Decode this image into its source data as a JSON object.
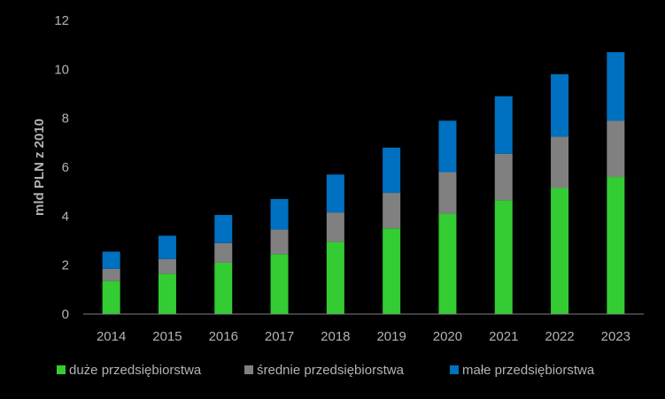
{
  "chart_data": {
    "type": "bar",
    "stacked": true,
    "title": "",
    "xlabel": "",
    "ylabel": "mld PLN z 2010",
    "ylim": [
      0,
      12
    ],
    "yticks": [
      "0",
      "2",
      "4",
      "6",
      "8",
      "10",
      "12"
    ],
    "categories": [
      "2014",
      "2015",
      "2016",
      "2017",
      "2018",
      "2019",
      "2020",
      "2021",
      "2022",
      "2023"
    ],
    "series": [
      {
        "name": "duże przedsiębiorstwa",
        "color": "#33cc33",
        "values": [
          1.35,
          1.65,
          2.1,
          2.45,
          2.95,
          3.5,
          4.1,
          4.65,
          5.15,
          5.6
        ]
      },
      {
        "name": "średnie przedsiębiorstwa",
        "color": "#808080",
        "values": [
          0.5,
          0.6,
          0.8,
          1.0,
          1.2,
          1.45,
          1.7,
          1.9,
          2.1,
          2.3
        ]
      },
      {
        "name": "małe przedsiębiorstwa",
        "color": "#0070c0",
        "values": [
          0.7,
          0.95,
          1.15,
          1.25,
          1.55,
          1.85,
          2.1,
          2.35,
          2.55,
          2.8
        ]
      }
    ],
    "grid": false,
    "legend_position": "bottom"
  }
}
